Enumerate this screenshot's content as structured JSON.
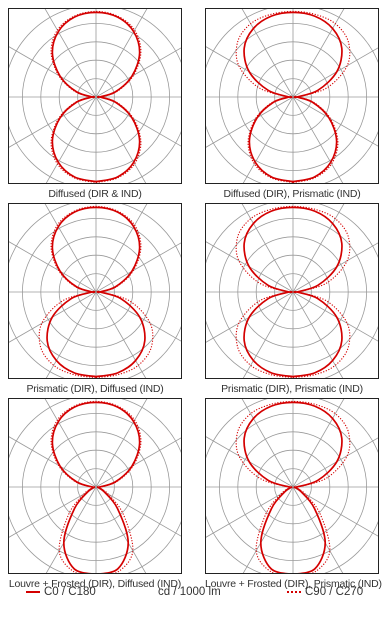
{
  "legend": {
    "solid_label": "C0 / C180",
    "unit_label": "cd / 1000 lm",
    "dotted_label": "C90 / C270",
    "line_color": "#d40000"
  },
  "grid_color": "#9a9a9a",
  "chart_data": [
    {
      "type": "polar",
      "caption": "Diffused (DIR & IND)",
      "series": [
        {
          "name": "C0 / C180",
          "style": "solid",
          "angles_deg": [
            0,
            15,
            30,
            45,
            60,
            75,
            90
          ],
          "down": [
            0.92,
            0.9,
            0.82,
            0.67,
            0.45,
            0.22,
            0.04
          ],
          "up": [
            0.92,
            0.9,
            0.82,
            0.67,
            0.45,
            0.22,
            0.04
          ]
        },
        {
          "name": "C90 / C270",
          "style": "dotted",
          "angles_deg": [
            0,
            15,
            30,
            45,
            60,
            75,
            90
          ],
          "down": [
            0.93,
            0.91,
            0.84,
            0.69,
            0.47,
            0.24,
            0.05
          ],
          "up": [
            0.93,
            0.91,
            0.84,
            0.69,
            0.47,
            0.24,
            0.05
          ]
        }
      ]
    },
    {
      "type": "polar",
      "caption": "Diffused (DIR), Prismatic (IND)",
      "series": [
        {
          "name": "C0 / C180",
          "style": "solid",
          "angles_deg": [
            0,
            15,
            30,
            45,
            60,
            75,
            90
          ],
          "down": [
            0.92,
            0.9,
            0.82,
            0.67,
            0.45,
            0.22,
            0.04
          ],
          "up": [
            0.92,
            0.91,
            0.86,
            0.75,
            0.55,
            0.28,
            0.04
          ]
        },
        {
          "name": "C90 / C270",
          "style": "dotted",
          "angles_deg": [
            0,
            15,
            30,
            45,
            60,
            75,
            90
          ],
          "down": [
            0.93,
            0.91,
            0.84,
            0.69,
            0.47,
            0.24,
            0.05
          ],
          "up": [
            0.93,
            0.93,
            0.92,
            0.85,
            0.68,
            0.38,
            0.05
          ]
        }
      ]
    },
    {
      "type": "polar",
      "caption": "Prismatic (DIR), Diffused (IND)",
      "series": [
        {
          "name": "C0 / C180",
          "style": "solid",
          "angles_deg": [
            0,
            15,
            30,
            45,
            60,
            75,
            90
          ],
          "down": [
            0.92,
            0.91,
            0.86,
            0.75,
            0.55,
            0.28,
            0.04
          ],
          "up": [
            0.92,
            0.9,
            0.82,
            0.67,
            0.45,
            0.22,
            0.04
          ]
        },
        {
          "name": "C90 / C270",
          "style": "dotted",
          "angles_deg": [
            0,
            15,
            30,
            45,
            60,
            75,
            90
          ],
          "down": [
            0.93,
            0.93,
            0.92,
            0.85,
            0.68,
            0.38,
            0.05
          ],
          "up": [
            0.93,
            0.91,
            0.84,
            0.69,
            0.47,
            0.24,
            0.05
          ]
        }
      ]
    },
    {
      "type": "polar",
      "caption": "Prismatic (DIR), Prismatic (IND)",
      "series": [
        {
          "name": "C0 / C180",
          "style": "solid",
          "angles_deg": [
            0,
            15,
            30,
            45,
            60,
            75,
            90
          ],
          "down": [
            0.92,
            0.91,
            0.86,
            0.75,
            0.55,
            0.28,
            0.04
          ],
          "up": [
            0.92,
            0.91,
            0.86,
            0.75,
            0.55,
            0.28,
            0.04
          ]
        },
        {
          "name": "C90 / C270",
          "style": "dotted",
          "angles_deg": [
            0,
            15,
            30,
            45,
            60,
            75,
            90
          ],
          "down": [
            0.93,
            0.93,
            0.92,
            0.85,
            0.68,
            0.38,
            0.05
          ],
          "up": [
            0.93,
            0.93,
            0.92,
            0.85,
            0.68,
            0.38,
            0.05
          ]
        }
      ]
    },
    {
      "type": "polar",
      "caption": "Louvre + Frosted (DIR), Diffused (IND)",
      "series": [
        {
          "name": "C0 / C180",
          "style": "solid",
          "angles_deg": [
            0,
            15,
            30,
            45,
            60,
            75,
            90
          ],
          "down": [
            0.95,
            0.92,
            0.7,
            0.33,
            0.1,
            0.03,
            0.02
          ],
          "up": [
            0.92,
            0.9,
            0.82,
            0.67,
            0.45,
            0.22,
            0.04
          ]
        },
        {
          "name": "C90 / C270",
          "style": "dotted",
          "angles_deg": [
            0,
            15,
            30,
            45,
            60,
            75,
            90
          ],
          "down": [
            0.97,
            0.95,
            0.8,
            0.42,
            0.15,
            0.04,
            0.02
          ],
          "up": [
            0.93,
            0.91,
            0.84,
            0.69,
            0.47,
            0.24,
            0.05
          ]
        }
      ]
    },
    {
      "type": "polar",
      "caption": "Louvre + Frosted (DIR), Prismatic (IND)",
      "series": [
        {
          "name": "C0 / C180",
          "style": "solid",
          "angles_deg": [
            0,
            15,
            30,
            45,
            60,
            75,
            90
          ],
          "down": [
            0.95,
            0.92,
            0.7,
            0.33,
            0.1,
            0.03,
            0.02
          ],
          "up": [
            0.92,
            0.91,
            0.86,
            0.75,
            0.55,
            0.28,
            0.04
          ]
        },
        {
          "name": "C90 / C270",
          "style": "dotted",
          "angles_deg": [
            0,
            15,
            30,
            45,
            60,
            75,
            90
          ],
          "down": [
            0.97,
            0.95,
            0.8,
            0.42,
            0.15,
            0.04,
            0.02
          ],
          "up": [
            0.93,
            0.93,
            0.92,
            0.85,
            0.68,
            0.38,
            0.05
          ]
        }
      ]
    }
  ]
}
